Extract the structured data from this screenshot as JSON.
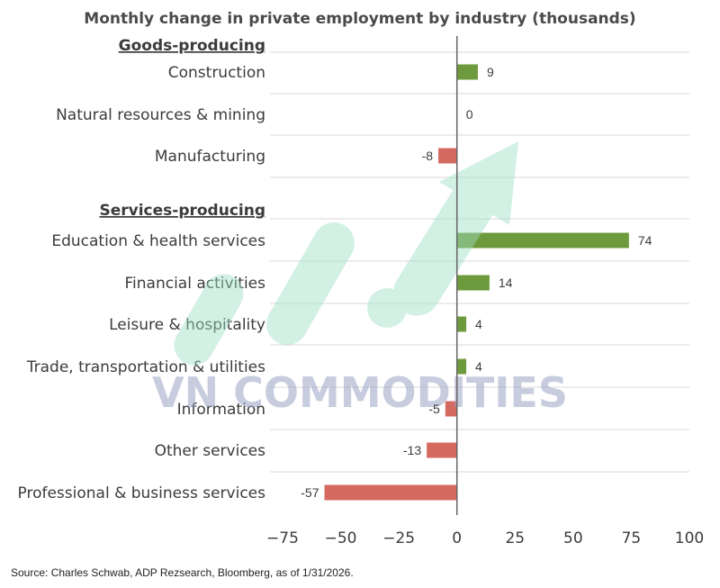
{
  "chart_data": {
    "type": "bar",
    "orientation": "horizontal",
    "title": "Monthly change in private employment by industry (thousands)",
    "groups": [
      {
        "name": "Goods-producing",
        "categories": [
          "Construction",
          "Natural resources & mining",
          "Manufacturing"
        ],
        "values": [
          9,
          0,
          -8
        ]
      },
      {
        "name": "Services-producing",
        "categories": [
          "Education & health services",
          "Financial activities",
          "Leisure & hospitality",
          "Trade, transportation & utilities",
          "Information",
          "Other services",
          "Professional & business services"
        ],
        "values": [
          74,
          14,
          4,
          4,
          -5,
          -13,
          -57
        ]
      }
    ],
    "xlim": [
      -75,
      100
    ],
    "xticks": [
      -75,
      -50,
      -25,
      0,
      25,
      50,
      75,
      100
    ],
    "grid": "horizontal",
    "colors": {
      "positive": "#6e9a3e",
      "negative": "#d46a5f",
      "zero_line": "#666666",
      "grid": "#d9d9d9"
    }
  },
  "watermark": {
    "text": "VN COMMODITIES"
  },
  "source": "Source: Charles Schwab, ADP Rezsearch, Bloomberg, as of 1/31/2026."
}
